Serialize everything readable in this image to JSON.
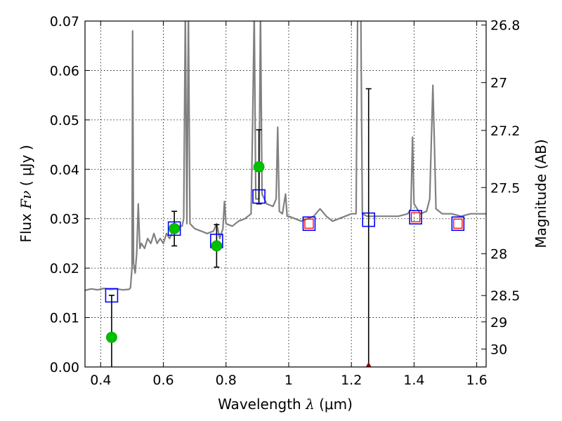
{
  "chart_data": {
    "type": "scatter",
    "title": "",
    "xlabel": {
      "text": "Wavelength",
      "symbol": "λ",
      "unit": "(μm)"
    },
    "ylabel": {
      "text": "Flux",
      "symbol": "Fν",
      "unit": "( μJy )"
    },
    "y2label": "Magnitude (AB)",
    "xlim": [
      0.35,
      1.63
    ],
    "ylim": [
      0.0,
      0.07
    ],
    "grid": true,
    "x_ticks": [
      {
        "value": 0.4,
        "label": "0.4"
      },
      {
        "value": 0.6,
        "label": "0.6"
      },
      {
        "value": 0.8,
        "label": "0.8"
      },
      {
        "value": 1.0,
        "label": "1"
      },
      {
        "value": 1.2,
        "label": "1.2"
      },
      {
        "value": 1.4,
        "label": "1.4"
      },
      {
        "value": 1.6,
        "label": "1.6"
      }
    ],
    "y_ticks": [
      {
        "value": 0.0,
        "label": "0.00"
      },
      {
        "value": 0.01,
        "label": "0.01"
      },
      {
        "value": 0.02,
        "label": "0.02"
      },
      {
        "value": 0.03,
        "label": "0.03"
      },
      {
        "value": 0.04,
        "label": "0.04"
      },
      {
        "value": 0.05,
        "label": "0.05"
      },
      {
        "value": 0.06,
        "label": "0.06"
      },
      {
        "value": 0.07,
        "label": "0.07"
      }
    ],
    "y2_ticks": [
      {
        "value": 26.8,
        "label": "26.8"
      },
      {
        "value": 27.0,
        "label": "27"
      },
      {
        "value": 27.2,
        "label": "27.2"
      },
      {
        "value": 27.5,
        "label": "27.5"
      },
      {
        "value": 28.0,
        "label": "28"
      },
      {
        "value": 28.5,
        "label": "28.5"
      },
      {
        "value": 29.0,
        "label": "29"
      },
      {
        "value": 30.0,
        "label": "30"
      }
    ],
    "series": [
      {
        "kind": "line",
        "color": "#808080",
        "points": [
          [
            0.35,
            0.0155
          ],
          [
            0.37,
            0.0158
          ],
          [
            0.39,
            0.0156
          ],
          [
            0.41,
            0.0159
          ],
          [
            0.43,
            0.0157
          ],
          [
            0.45,
            0.0158
          ],
          [
            0.47,
            0.0156
          ],
          [
            0.49,
            0.0157
          ],
          [
            0.495,
            0.016
          ],
          [
            0.5,
            0.02
          ],
          [
            0.502,
            0.068
          ],
          [
            0.505,
            0.021
          ],
          [
            0.51,
            0.019
          ],
          [
            0.515,
            0.023
          ],
          [
            0.52,
            0.033
          ],
          [
            0.525,
            0.024
          ],
          [
            0.53,
            0.025
          ],
          [
            0.54,
            0.024
          ],
          [
            0.55,
            0.026
          ],
          [
            0.56,
            0.025
          ],
          [
            0.57,
            0.027
          ],
          [
            0.58,
            0.025
          ],
          [
            0.59,
            0.026
          ],
          [
            0.6,
            0.025
          ],
          [
            0.61,
            0.027
          ],
          [
            0.62,
            0.026
          ],
          [
            0.63,
            0.0275
          ],
          [
            0.64,
            0.028
          ],
          [
            0.65,
            0.0285
          ],
          [
            0.66,
            0.0285
          ],
          [
            0.665,
            0.03
          ],
          [
            0.67,
            0.072
          ],
          [
            0.675,
            0.029
          ],
          [
            0.68,
            0.072
          ],
          [
            0.685,
            0.029
          ],
          [
            0.7,
            0.028
          ],
          [
            0.72,
            0.0275
          ],
          [
            0.74,
            0.027
          ],
          [
            0.76,
            0.0275
          ],
          [
            0.77,
            0.029
          ],
          [
            0.78,
            0.026
          ],
          [
            0.79,
            0.028
          ],
          [
            0.795,
            0.0335
          ],
          [
            0.8,
            0.029
          ],
          [
            0.82,
            0.0285
          ],
          [
            0.84,
            0.0295
          ],
          [
            0.86,
            0.03
          ],
          [
            0.88,
            0.031
          ],
          [
            0.885,
            0.05
          ],
          [
            0.89,
            0.072
          ],
          [
            0.895,
            0.034
          ],
          [
            0.905,
            0.034
          ],
          [
            0.91,
            0.072
          ],
          [
            0.915,
            0.035
          ],
          [
            0.93,
            0.033
          ],
          [
            0.95,
            0.0325
          ],
          [
            0.96,
            0.034
          ],
          [
            0.965,
            0.0485
          ],
          [
            0.97,
            0.0315
          ],
          [
            0.98,
            0.031
          ],
          [
            0.99,
            0.035
          ],
          [
            0.995,
            0.0305
          ],
          [
            1.0,
            0.0305
          ],
          [
            1.02,
            0.03
          ],
          [
            1.04,
            0.0295
          ],
          [
            1.06,
            0.03
          ],
          [
            1.08,
            0.0305
          ],
          [
            1.1,
            0.032
          ],
          [
            1.12,
            0.0305
          ],
          [
            1.14,
            0.0295
          ],
          [
            1.16,
            0.03
          ],
          [
            1.18,
            0.0305
          ],
          [
            1.2,
            0.031
          ],
          [
            1.215,
            0.031
          ],
          [
            1.22,
            0.072
          ],
          [
            1.23,
            0.072
          ],
          [
            1.235,
            0.031
          ],
          [
            1.25,
            0.0305
          ],
          [
            1.3,
            0.0305
          ],
          [
            1.35,
            0.0305
          ],
          [
            1.38,
            0.031
          ],
          [
            1.39,
            0.032
          ],
          [
            1.395,
            0.0465
          ],
          [
            1.4,
            0.033
          ],
          [
            1.42,
            0.031
          ],
          [
            1.44,
            0.0315
          ],
          [
            1.45,
            0.034
          ],
          [
            1.46,
            0.057
          ],
          [
            1.465,
            0.045
          ],
          [
            1.47,
            0.032
          ],
          [
            1.49,
            0.031
          ],
          [
            1.52,
            0.031
          ],
          [
            1.55,
            0.0305
          ],
          [
            1.58,
            0.031
          ],
          [
            1.6,
            0.031
          ],
          [
            1.63,
            0.031
          ]
        ]
      },
      {
        "kind": "open-square-blue",
        "color": "#0000ff",
        "points": [
          [
            0.435,
            0.0145
          ],
          [
            0.635,
            0.028
          ],
          [
            0.77,
            0.0255
          ],
          [
            0.905,
            0.0345
          ],
          [
            1.065,
            0.029
          ],
          [
            1.255,
            0.0298
          ],
          [
            1.405,
            0.0303
          ],
          [
            1.54,
            0.029
          ]
        ]
      },
      {
        "kind": "open-square-red",
        "color": "#ff0000",
        "points": [
          [
            1.065,
            0.029
          ],
          [
            1.405,
            0.0303
          ],
          [
            1.54,
            0.029
          ]
        ]
      },
      {
        "kind": "filled-circle",
        "color": "#00c000",
        "points": [
          [
            0.435,
            0.006
          ],
          [
            0.635,
            0.028
          ],
          [
            0.77,
            0.0245
          ],
          [
            0.905,
            0.0405
          ]
        ]
      },
      {
        "kind": "errorbar",
        "color": "#000000",
        "bars": [
          {
            "x": 0.435,
            "low": 0.0,
            "high": 0.0145
          },
          {
            "x": 0.635,
            "low": 0.0245,
            "high": 0.0315
          },
          {
            "x": 0.77,
            "low": 0.0202,
            "high": 0.0288
          },
          {
            "x": 0.905,
            "low": 0.033,
            "high": 0.048
          },
          {
            "x": 1.255,
            "low": 0.0,
            "high": 0.0563
          }
        ]
      },
      {
        "kind": "upper-limit-marker",
        "color": "#8b0000",
        "points": [
          [
            1.255,
            0.0
          ]
        ]
      }
    ]
  }
}
